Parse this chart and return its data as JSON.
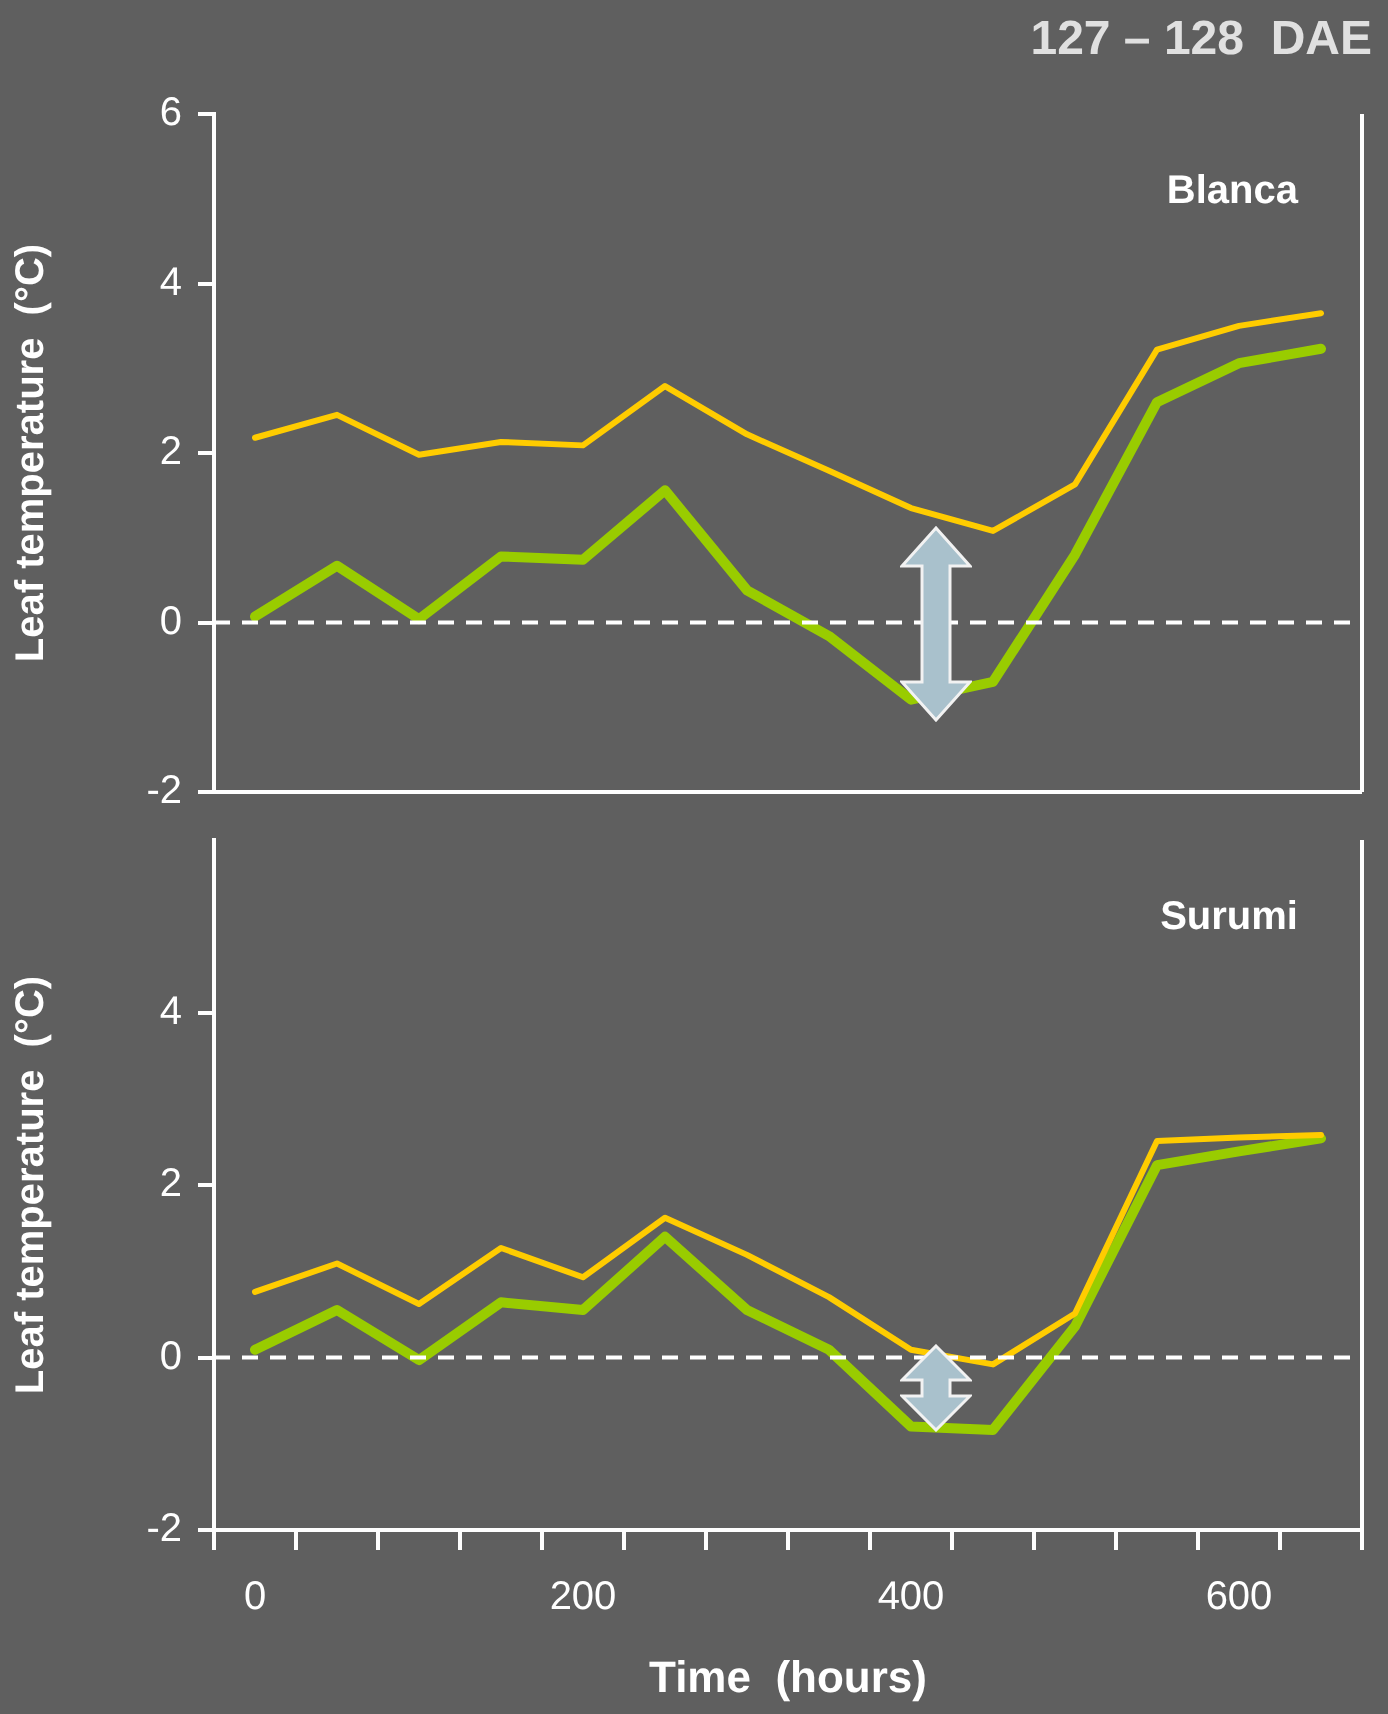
{
  "chart_data": [
    {
      "type": "line",
      "title": "Blanca",
      "ylabel": "Leaf temperature  (°C)",
      "annotations": [
        "127 – 128  DAE"
      ],
      "x": [
        0,
        50,
        100,
        150,
        200,
        250,
        300,
        350,
        400,
        450,
        500,
        550,
        600,
        650
      ],
      "series": [
        {
          "color": "#ffcc00",
          "values": [
            2.18,
            2.45,
            1.98,
            2.13,
            2.09,
            2.79,
            2.22,
            1.79,
            1.35,
            1.08,
            1.63,
            3.22,
            3.5,
            3.65
          ]
        },
        {
          "color": "#99cc00",
          "values": [
            0.07,
            0.67,
            0.04,
            0.78,
            0.74,
            1.56,
            0.38,
            -0.16,
            -0.91,
            -0.7,
            0.8,
            2.6,
            3.06,
            3.23
          ]
        }
      ],
      "xlim": [
        -25,
        675
      ],
      "ylim": [
        -2,
        6
      ],
      "yticks": [
        -2,
        0,
        2,
        4,
        6
      ],
      "tick_labels": "y",
      "ref_lines": [
        {
          "axis": "y",
          "value": 0,
          "color": "#ffffff",
          "line_style": "dashed"
        }
      ]
    },
    {
      "type": "line",
      "title": "Surumi",
      "ylabel": "Leaf temperature  (°C)",
      "xlabel": "Time  (hours)",
      "x": [
        0,
        50,
        100,
        150,
        200,
        250,
        300,
        350,
        400,
        450,
        500,
        550,
        600,
        650
      ],
      "series": [
        {
          "color": "#ffcc00",
          "values": [
            0.76,
            1.09,
            0.62,
            1.27,
            0.93,
            1.62,
            1.19,
            0.7,
            0.09,
            -0.08,
            0.51,
            2.51,
            2.55,
            2.58
          ]
        },
        {
          "color": "#99cc00",
          "values": [
            0.09,
            0.55,
            -0.03,
            0.64,
            0.55,
            1.4,
            0.55,
            0.09,
            -0.8,
            -0.84,
            0.36,
            2.23,
            2.39,
            2.54
          ]
        }
      ],
      "xlim": [
        -25,
        675
      ],
      "ylim": [
        -2,
        6
      ],
      "yticks": [
        -2,
        0,
        2,
        4
      ],
      "xticks": [
        {
          "value": -25,
          "label": null
        },
        0,
        {
          "value": 25,
          "label": null
        },
        {
          "value": 75,
          "label": null
        },
        {
          "value": 125,
          "label": null
        },
        {
          "value": 175,
          "label": null
        },
        200,
        {
          "value": 225,
          "label": null
        },
        {
          "value": 275,
          "label": null
        },
        {
          "value": 325,
          "label": null
        },
        {
          "value": 375,
          "label": null
        },
        400,
        {
          "value": 425,
          "label": null
        },
        {
          "value": 475,
          "label": null
        },
        {
          "value": 525,
          "label": null
        },
        {
          "value": 575,
          "label": null
        },
        600,
        {
          "value": 625,
          "label": null
        },
        {
          "value": 675,
          "label": null
        }
      ],
      "ref_lines": [
        {
          "axis": "y",
          "value": 0,
          "color": "#ffffff",
          "line_style": "dashed"
        }
      ]
    }
  ]
}
